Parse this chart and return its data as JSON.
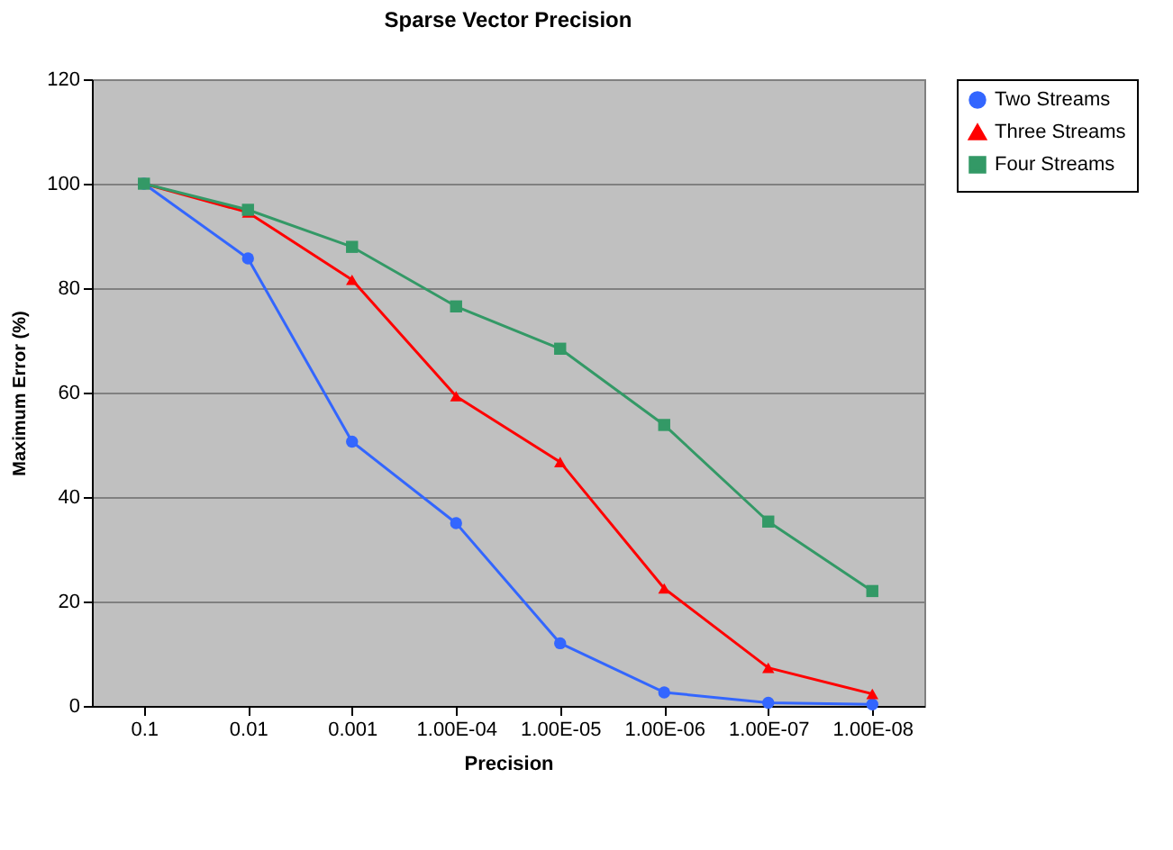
{
  "chart_data": {
    "type": "line",
    "title": "Sparse Vector Precision",
    "xlabel": "Precision",
    "ylabel": "Maximum Error (%)",
    "categories": [
      "0.1",
      "0.01",
      "0.001",
      "1.00E-04",
      "1.00E-05",
      "1.00E-06",
      "1.00E-07",
      "1.00E-08"
    ],
    "series": [
      {
        "name": "Two Streams",
        "color": "#3366ff",
        "marker": "circle",
        "values": [
          100,
          85.7,
          50.6,
          35,
          12,
          2.6,
          0.6,
          0.3
        ]
      },
      {
        "name": "Three Streams",
        "color": "#ff0000",
        "marker": "triangle",
        "values": [
          100,
          94.5,
          81.6,
          59.3,
          46.7,
          22.5,
          7.3,
          2.3
        ]
      },
      {
        "name": "Four Streams",
        "color": "#339966",
        "marker": "square",
        "values": [
          100,
          95,
          87.9,
          76.5,
          68.4,
          53.8,
          35.3,
          22
        ]
      }
    ],
    "ylim": [
      0,
      120
    ],
    "yticks": [
      0,
      20,
      40,
      60,
      80,
      100,
      120
    ],
    "grid": "y",
    "legend": "right",
    "line_style": "solid"
  }
}
